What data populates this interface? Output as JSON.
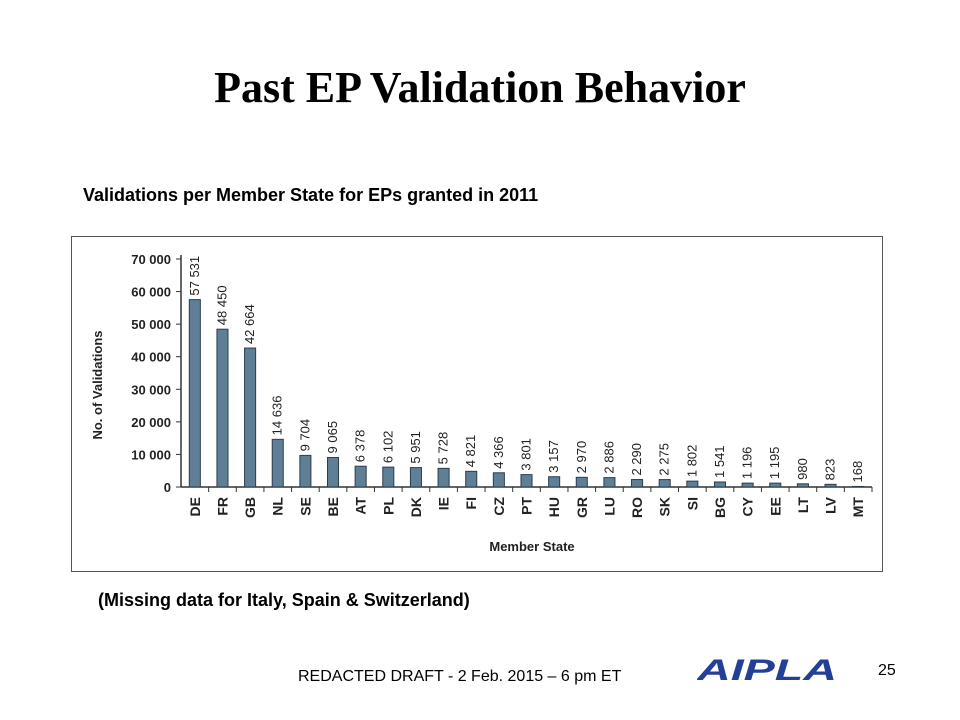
{
  "slide": {
    "title": "Past EP Validation Behavior",
    "caption": "Validations per Member State for EPs granted in 2011",
    "note": "(Missing data for Italy, Spain & Switzerland)",
    "footer": "REDACTED DRAFT - 2 Feb. 2015 – 6 pm ET",
    "logo_text": "AIPLA",
    "page_number": "25"
  },
  "colors": {
    "bar_fill": "#5f7f96",
    "bar_stroke": "#2c3e4c",
    "logo_blue": "#243f97"
  },
  "chart_data": {
    "type": "bar",
    "title": "",
    "xlabel": "Member State",
    "ylabel": "No. of Validations",
    "ylim": [
      0,
      70000
    ],
    "yticks": [
      0,
      10000,
      20000,
      30000,
      40000,
      50000,
      60000,
      70000
    ],
    "ytick_labels": [
      "0",
      "10 000",
      "20 000",
      "30 000",
      "40 000",
      "50 000",
      "60 000",
      "70 000"
    ],
    "categories": [
      "DE",
      "FR",
      "GB",
      "NL",
      "SE",
      "BE",
      "AT",
      "PL",
      "DK",
      "IE",
      "FI",
      "CZ",
      "PT",
      "HU",
      "GR",
      "LU",
      "RO",
      "SK",
      "SI",
      "BG",
      "CY",
      "EE",
      "LT",
      "LV",
      "MT"
    ],
    "values": [
      57531,
      48450,
      42664,
      14636,
      9704,
      9065,
      6378,
      6102,
      5951,
      5728,
      4821,
      4366,
      3801,
      3157,
      2970,
      2886,
      2290,
      2275,
      1802,
      1541,
      1196,
      1195,
      980,
      823,
      168
    ],
    "value_labels": [
      "57 531",
      "48 450",
      "42 664",
      "14 636",
      "9 704",
      "9 065",
      "6 378",
      "6 102",
      "5 951",
      "5 728",
      "4 821",
      "4 366",
      "3 801",
      "3 157",
      "2 970",
      "2 886",
      "2 290",
      "2 275",
      "1 802",
      "1 541",
      "1 196",
      "1 195",
      "980",
      "823",
      "168"
    ],
    "grid": false
  }
}
